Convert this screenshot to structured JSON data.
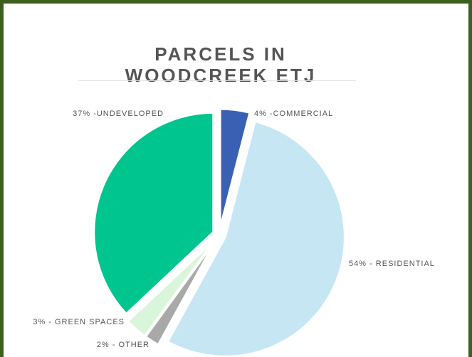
{
  "chart_data": {
    "type": "pie",
    "title": "PARCELS IN WOODCREEK ETJ",
    "values": [
      4,
      54,
      2,
      3,
      37
    ],
    "value_labels": [
      "4% -COMMERCIAL",
      "54% - RESIDENTIAL",
      "2% - OTHER",
      "3% - GREEN SPACES",
      "37% -UNDEVELOPED"
    ],
    "colors": [
      "#3a60b4",
      "#c6e6f4",
      "#a9a9a9",
      "#daf6da",
      "#00c58e"
    ]
  }
}
